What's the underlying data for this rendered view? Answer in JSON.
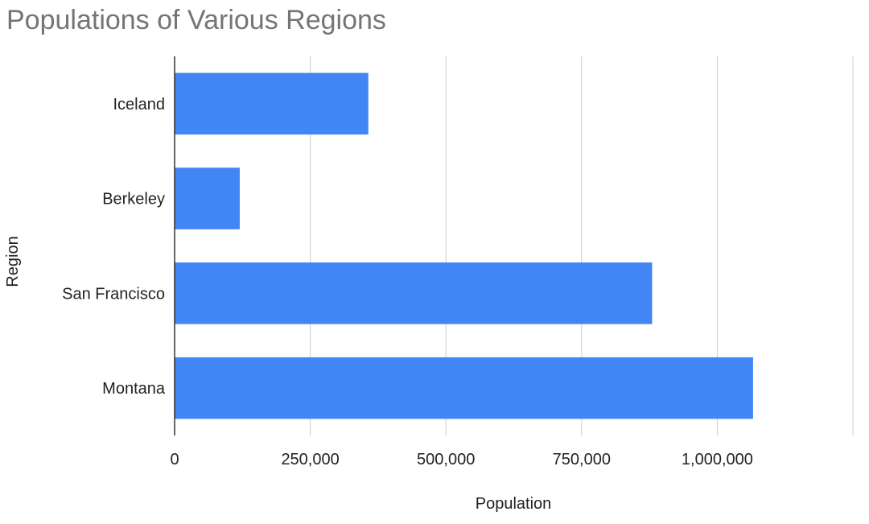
{
  "chart_data": {
    "type": "bar",
    "orientation": "horizontal",
    "title": "Populations of Various Regions",
    "xlabel": "Population",
    "ylabel": "Region",
    "categories": [
      "Iceland",
      "Berkeley",
      "San Francisco",
      "Montana"
    ],
    "series": [
      {
        "values": [
          357000,
          120000,
          880000,
          1066000
        ]
      }
    ],
    "xlim": [
      0,
      1250000
    ],
    "xticks": [
      0,
      250000,
      500000,
      750000,
      1000000,
      1250000
    ],
    "xtick_labels": [
      "0",
      "250,000",
      "500,000",
      "750,000",
      "1,000,000",
      ""
    ],
    "grid": true,
    "legend": "none",
    "colors": {
      "bar": "#4285f4",
      "grid": "#cccccc",
      "axis": "#333333",
      "title": "#757575",
      "text": "#222222"
    }
  }
}
